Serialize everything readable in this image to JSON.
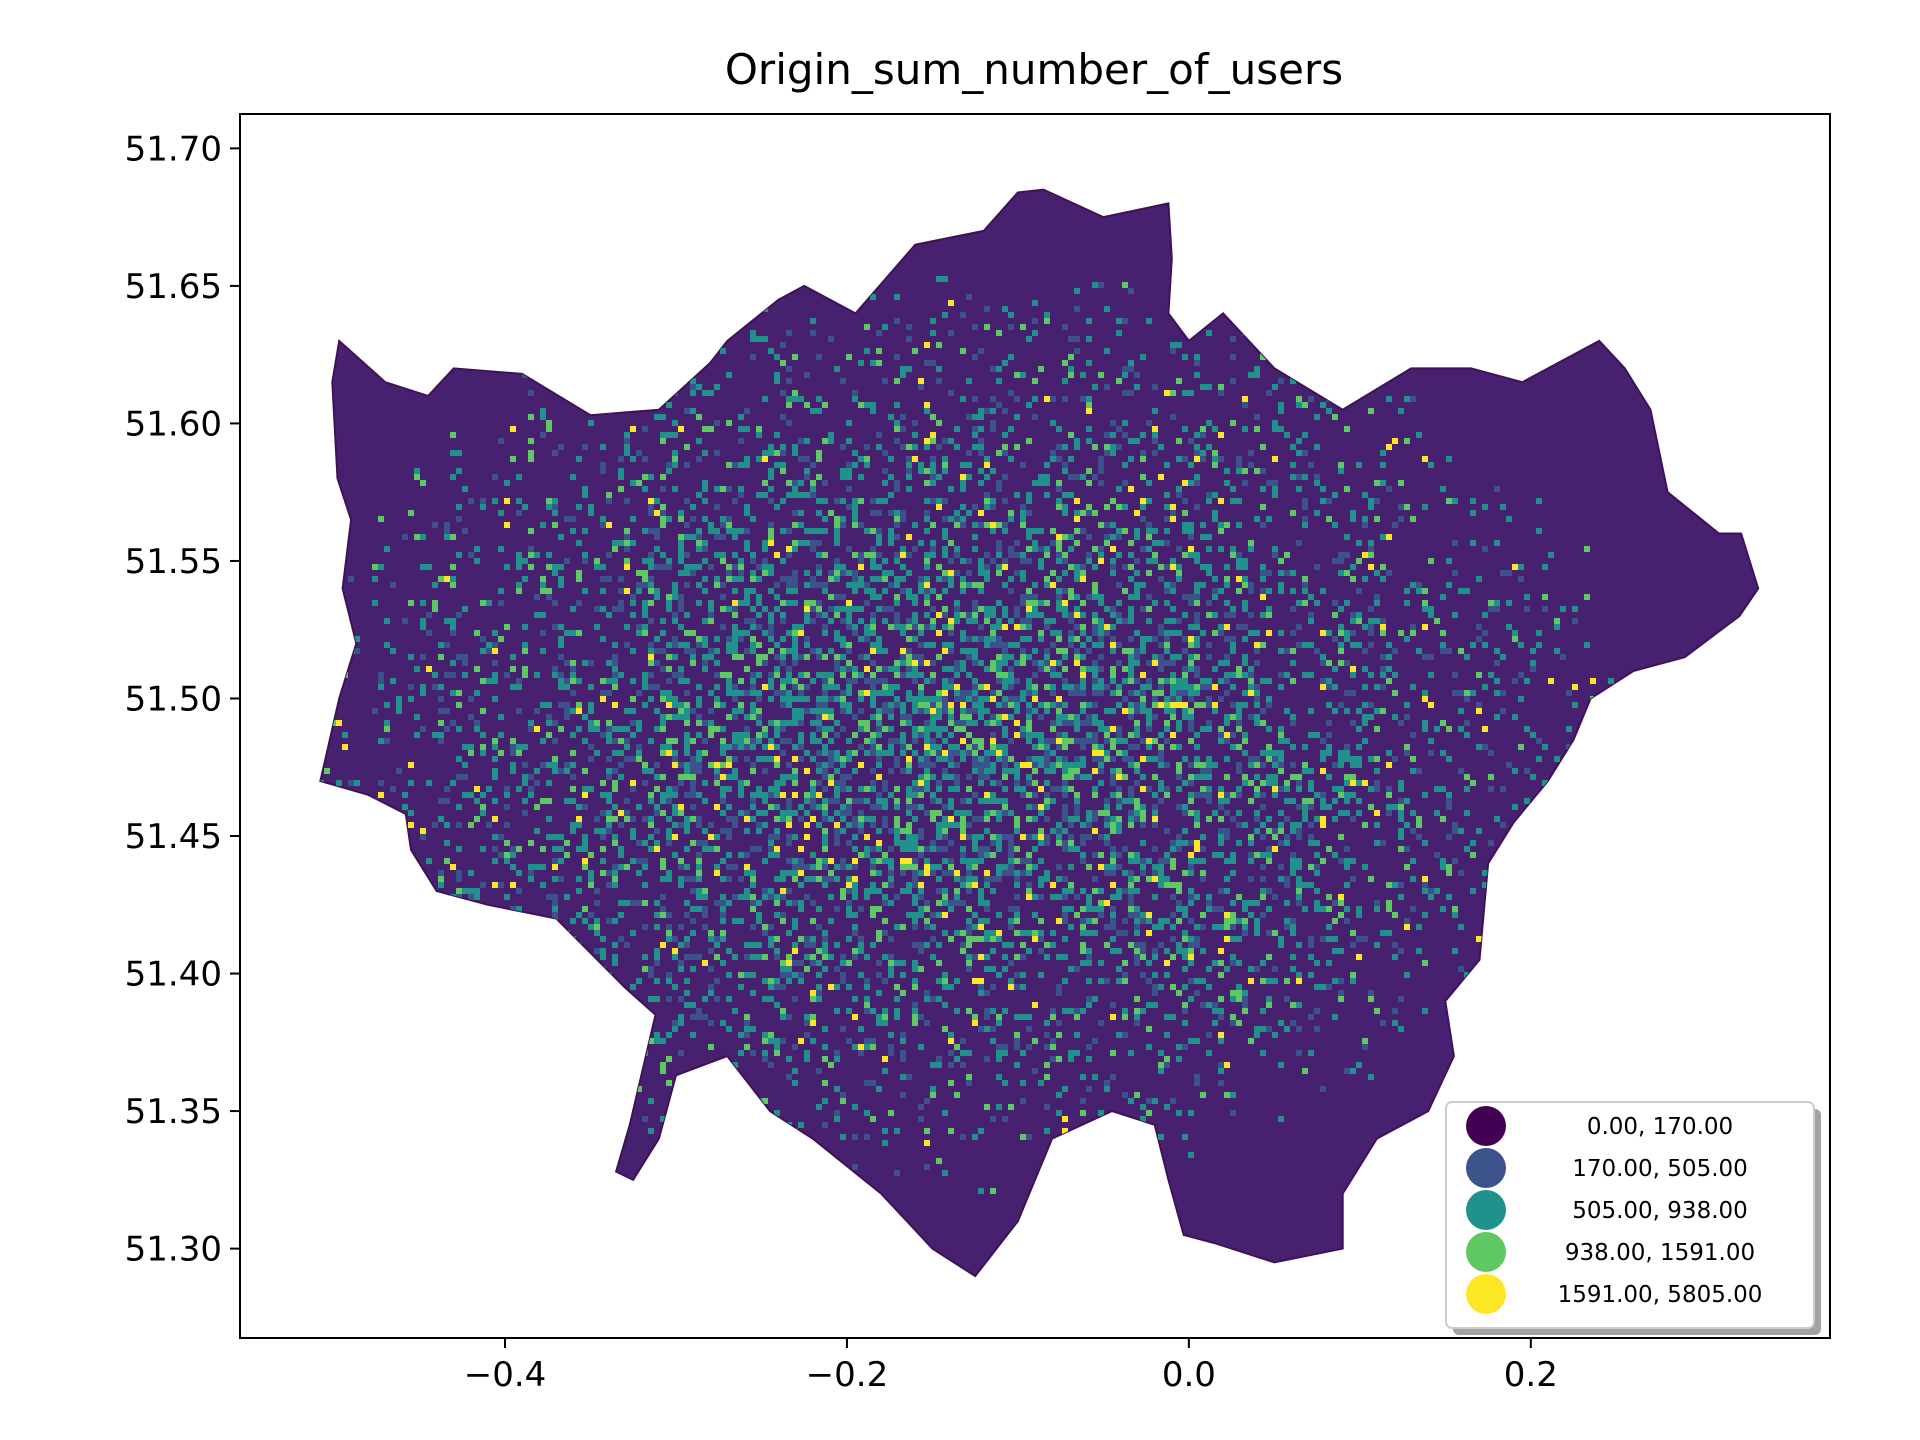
{
  "chart_data": {
    "type": "heatmap",
    "title": "Origin_sum_number_of_users",
    "xlabel": "",
    "ylabel": "",
    "xlim": [
      -0.555,
      0.375
    ],
    "ylim": [
      51.2675,
      51.7125
    ],
    "x_ticks": [
      {
        "value": -0.4,
        "label": "−0.4"
      },
      {
        "value": -0.2,
        "label": "−0.2"
      },
      {
        "value": 0.0,
        "label": "0.0"
      },
      {
        "value": 0.2,
        "label": "0.2"
      }
    ],
    "y_ticks": [
      {
        "value": 51.3,
        "label": "51.30"
      },
      {
        "value": 51.35,
        "label": "51.35"
      },
      {
        "value": 51.4,
        "label": "51.40"
      },
      {
        "value": 51.45,
        "label": "51.45"
      },
      {
        "value": 51.5,
        "label": "51.50"
      },
      {
        "value": 51.55,
        "label": "51.55"
      },
      {
        "value": 51.6,
        "label": "51.60"
      },
      {
        "value": 51.65,
        "label": "51.65"
      },
      {
        "value": 51.7,
        "label": "51.70"
      }
    ],
    "colormap": "viridis",
    "legend": {
      "placement": "lower-right",
      "classes": [
        {
          "label": "0.00,  170.00",
          "color": "#440154"
        },
        {
          "label": "170.00,  505.00",
          "color": "#3b528b"
        },
        {
          "label": "505.00,  938.00",
          "color": "#21918c"
        },
        {
          "label": "938.00, 1591.00",
          "color": "#5ec962"
        },
        {
          "label": "1591.00, 5805.00",
          "color": "#fde725"
        }
      ]
    },
    "boundary": [
      [
        -0.508,
        51.47
      ],
      [
        -0.497,
        51.5
      ],
      [
        -0.487,
        51.52
      ],
      [
        -0.495,
        51.54
      ],
      [
        -0.49,
        51.565
      ],
      [
        -0.498,
        51.58
      ],
      [
        -0.501,
        51.615
      ],
      [
        -0.497,
        51.63
      ],
      [
        -0.47,
        51.615
      ],
      [
        -0.445,
        51.61
      ],
      [
        -0.43,
        51.62
      ],
      [
        -0.39,
        51.618
      ],
      [
        -0.35,
        51.603
      ],
      [
        -0.31,
        51.605
      ],
      [
        -0.28,
        51.622
      ],
      [
        -0.27,
        51.63
      ],
      [
        -0.24,
        51.645
      ],
      [
        -0.225,
        51.65
      ],
      [
        -0.195,
        51.64
      ],
      [
        -0.16,
        51.665
      ],
      [
        -0.12,
        51.67
      ],
      [
        -0.1,
        51.684
      ],
      [
        -0.085,
        51.685
      ],
      [
        -0.05,
        51.675
      ],
      [
        -0.012,
        51.68
      ],
      [
        -0.01,
        51.66
      ],
      [
        -0.012,
        51.64
      ],
      [
        0.0,
        51.63
      ],
      [
        0.02,
        51.64
      ],
      [
        0.05,
        51.62
      ],
      [
        0.09,
        51.605
      ],
      [
        0.13,
        51.62
      ],
      [
        0.165,
        51.62
      ],
      [
        0.195,
        51.615
      ],
      [
        0.24,
        51.63
      ],
      [
        0.255,
        51.62
      ],
      [
        0.27,
        51.605
      ],
      [
        0.28,
        51.575
      ],
      [
        0.3,
        51.565
      ],
      [
        0.31,
        51.56
      ],
      [
        0.323,
        51.56
      ],
      [
        0.333,
        51.54
      ],
      [
        0.322,
        51.53
      ],
      [
        0.29,
        51.515
      ],
      [
        0.26,
        51.51
      ],
      [
        0.235,
        51.5
      ],
      [
        0.225,
        51.485
      ],
      [
        0.21,
        51.47
      ],
      [
        0.19,
        51.455
      ],
      [
        0.175,
        51.44
      ],
      [
        0.17,
        51.405
      ],
      [
        0.15,
        51.39
      ],
      [
        0.155,
        51.37
      ],
      [
        0.14,
        51.35
      ],
      [
        0.11,
        51.34
      ],
      [
        0.09,
        51.32
      ],
      [
        0.09,
        51.3
      ],
      [
        0.05,
        51.295
      ],
      [
        0.015,
        51.302
      ],
      [
        -0.003,
        51.305
      ],
      [
        -0.012,
        51.325
      ],
      [
        -0.02,
        51.345
      ],
      [
        -0.045,
        51.35
      ],
      [
        -0.08,
        51.34
      ],
      [
        -0.1,
        51.31
      ],
      [
        -0.125,
        51.29
      ],
      [
        -0.15,
        51.3
      ],
      [
        -0.165,
        51.31
      ],
      [
        -0.18,
        51.32
      ],
      [
        -0.2,
        51.33
      ],
      [
        -0.22,
        51.34
      ],
      [
        -0.245,
        51.35
      ],
      [
        -0.27,
        51.37
      ],
      [
        -0.3,
        51.363
      ],
      [
        -0.31,
        51.34
      ],
      [
        -0.325,
        51.325
      ],
      [
        -0.335,
        51.328
      ],
      [
        -0.327,
        51.345
      ],
      [
        -0.312,
        51.385
      ],
      [
        -0.33,
        51.395
      ],
      [
        -0.37,
        51.42
      ],
      [
        -0.41,
        51.425
      ],
      [
        -0.44,
        51.43
      ],
      [
        -0.455,
        51.445
      ],
      [
        -0.458,
        51.458
      ],
      [
        -0.48,
        51.465
      ]
    ]
  }
}
